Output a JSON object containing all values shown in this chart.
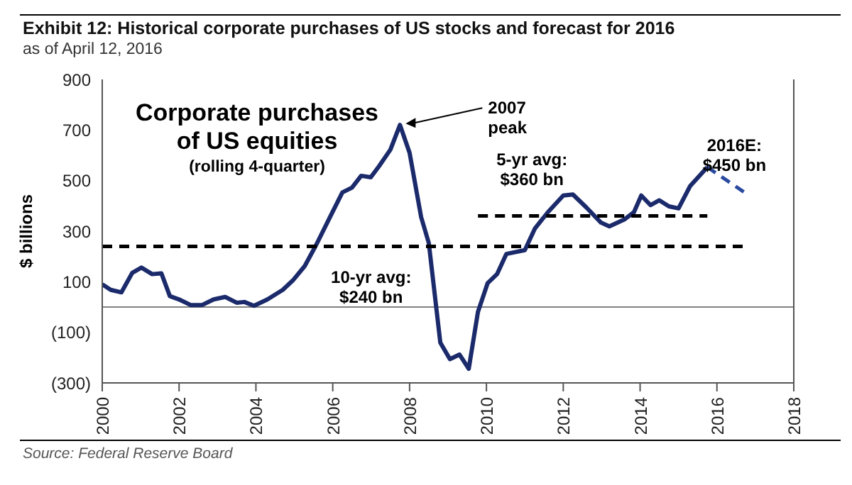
{
  "chart_data": {
    "type": "line",
    "title": "Exhibit 12: Historical corporate purchases of US stocks and forecast for 2016",
    "subtitle": "as of April 12, 2016",
    "ylabel": "$ billions",
    "xlim": [
      2000,
      2018
    ],
    "xticks": [
      2000,
      2002,
      2004,
      2006,
      2008,
      2010,
      2012,
      2014,
      2016,
      2018
    ],
    "ylim": [
      -300,
      900
    ],
    "yticks": [
      {
        "value": -300,
        "label": "(300)"
      },
      {
        "value": -100,
        "label": "(100)"
      },
      100,
      300,
      500,
      700,
      900
    ],
    "marker": "none",
    "ref_lines": [
      {
        "axis": "y",
        "value": 0,
        "color": "#808080",
        "line_style": "solid"
      }
    ],
    "series": [
      {
        "color": "#1b2a6b",
        "line_style": "solid",
        "x": [
          2000.0,
          2000.22,
          2000.5,
          2000.78,
          2001.02,
          2001.3,
          2001.54,
          2001.76,
          2002.0,
          2002.3,
          2002.6,
          2002.9,
          2003.2,
          2003.5,
          2003.7,
          2003.95,
          2004.3,
          2004.7,
          2004.96,
          2005.27,
          2005.57,
          2005.94,
          2006.25,
          2006.5,
          2006.74,
          2006.99,
          2007.2,
          2007.5,
          2007.75,
          2008.0,
          2008.3,
          2008.5,
          2008.8,
          2009.05,
          2009.3,
          2009.54,
          2009.78,
          2010.03,
          2010.28,
          2010.52,
          2011.0,
          2011.26,
          2011.6,
          2012.0,
          2012.25,
          2012.6,
          2012.98,
          2013.2,
          2013.6,
          2013.84,
          2014.03,
          2014.27,
          2014.5,
          2014.75,
          2015.0,
          2015.3,
          2015.75
        ],
        "values": [
          90,
          68,
          58,
          135,
          156,
          130,
          133,
          43,
          30,
          8,
          8,
          30,
          40,
          17,
          20,
          5,
          30,
          68,
          105,
          162,
          246,
          359,
          453,
          472,
          519,
          513,
          556,
          622,
          720,
          610,
          356,
          253,
          -141,
          -206,
          -188,
          -244,
          -19,
          94,
          131,
          210,
          225,
          310,
          375,
          441,
          445,
          394,
          334,
          319,
          347,
          375,
          441,
          403,
          422,
          398,
          390,
          478,
          553
        ]
      },
      {
        "color": "#2a4aa0",
        "line_style": "dashed",
        "x": [
          2015.75,
          2016.75
        ],
        "values": [
          553,
          450
        ]
      },
      {
        "color": "#000000",
        "line_style": "dashed",
        "x": [
          2000,
          2016.75
        ],
        "values": [
          240,
          240
        ]
      },
      {
        "color": "#000000",
        "line_style": "dashed",
        "x": [
          2009.78,
          2015.75
        ],
        "values": [
          360,
          360
        ]
      }
    ],
    "annotations": [
      "Corporate purchases\nof US equities",
      "(rolling 4-quarter)",
      "Source: Federal Reserve Board",
      {
        "text": "2007\npeak",
        "x": 2007.75,
        "y": 720
      },
      {
        "text": "10-yr avg:\n$240 bn",
        "x": 2007.0,
        "y": 240
      },
      {
        "text": "5-yr avg:\n$360 bn",
        "x": 2011.0,
        "y": 360
      },
      {
        "text": "2016E:\n$450 bn",
        "x": 2016.75,
        "y": 450
      }
    ]
  }
}
